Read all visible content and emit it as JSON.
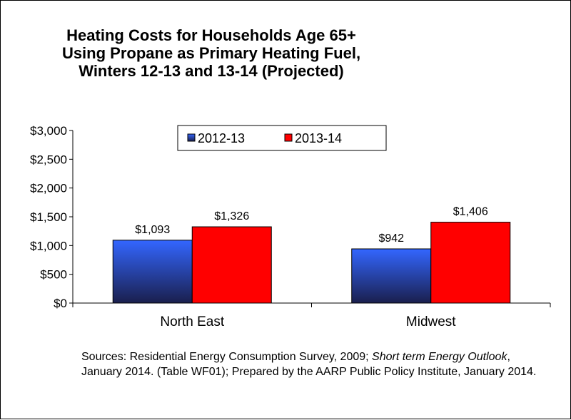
{
  "title_lines": [
    "Heating Costs for Households Age 65+",
    "Using Propane as Primary Heating Fuel,",
    "Winters 12-13 and 13-14 (Projected)"
  ],
  "source": {
    "part1": "Sources: Residential Energy Consumption Survey, 2009; ",
    "italic1": "Short term Energy Outlook",
    "part2": ", January 2014. (Table WF01); Prepared by the AARP Public Policy Institute, January 2014."
  },
  "colors": {
    "series_2012": "#3366ff",
    "series_2012_dark": "#1a1f4d",
    "series_2013": "#ff0000"
  },
  "chart_data": {
    "type": "bar",
    "categories": [
      "North East",
      "Midwest"
    ],
    "series": [
      {
        "name": "2012-13",
        "values": [
          1093,
          942
        ],
        "labels": [
          "$1,093",
          "$942"
        ]
      },
      {
        "name": "2013-14",
        "values": [
          1326,
          1406
        ],
        "labels": [
          "$1,326",
          "$1,406"
        ]
      }
    ],
    "ylim": [
      0,
      3000
    ],
    "yticks": [
      0,
      500,
      1000,
      1500,
      2000,
      2500,
      3000
    ],
    "ytick_labels": [
      "$0",
      "$500",
      "$1,000",
      "$1,500",
      "$2,000",
      "$2,500",
      "$3,000"
    ],
    "grid": false,
    "legend_position": "top-center"
  }
}
